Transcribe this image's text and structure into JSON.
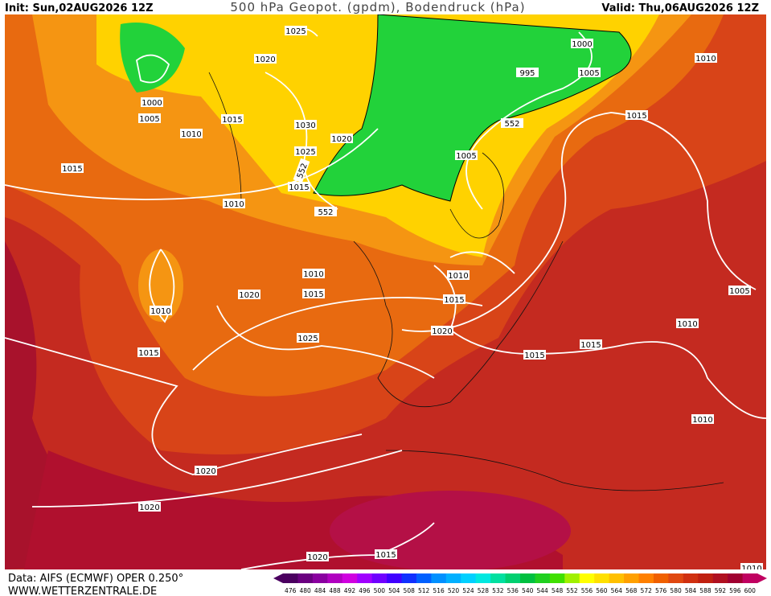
{
  "header": {
    "init": "Init: Sun,02AUG2026 12Z",
    "title": "500 hPa Geopot. (gpdm), Bodendruck (hPa)",
    "valid": "Valid: Thu,06AUG2026 12Z"
  },
  "map": {
    "isobar_labels": [
      1025,
      1020,
      1000,
      1005,
      1010,
      1015,
      1030,
      1025,
      1020,
      1015,
      1010,
      1000,
      995,
      1005,
      1010,
      1015,
      1005,
      1015,
      1010,
      1015,
      1020,
      1010,
      1015,
      1025,
      1010,
      1015,
      1020,
      1015,
      1015,
      1005,
      1010,
      1010,
      1020,
      1020,
      1020,
      1015,
      1010
    ],
    "height_labels": [
      552,
      552,
      552
    ]
  },
  "footer": {
    "data": "Data: AIFS (ECMWF) OPER 0.250°",
    "site": "WWW.WETTERZENTRALE.DE"
  },
  "colorbar": {
    "labels": [
      476,
      480,
      484,
      488,
      492,
      496,
      500,
      504,
      508,
      512,
      516,
      520,
      524,
      528,
      532,
      536,
      540,
      544,
      548,
      552,
      556,
      560,
      564,
      568,
      572,
      576,
      580,
      584,
      588,
      592,
      596,
      600
    ],
    "colors": [
      "#4b0060",
      "#6a0080",
      "#8a00a0",
      "#b000c0",
      "#d000e0",
      "#a000ff",
      "#7000ff",
      "#4000ff",
      "#1030ff",
      "#0060ff",
      "#0090ff",
      "#00b0ff",
      "#00d0ff",
      "#00e8e0",
      "#00e0a0",
      "#00d070",
      "#00c040",
      "#20d020",
      "#40e000",
      "#a0f000",
      "#ffff00",
      "#ffe000",
      "#ffc000",
      "#ffa000",
      "#ff8000",
      "#f06000",
      "#e04810",
      "#d03010",
      "#c02010",
      "#b01020",
      "#a00030",
      "#c00060"
    ]
  }
}
